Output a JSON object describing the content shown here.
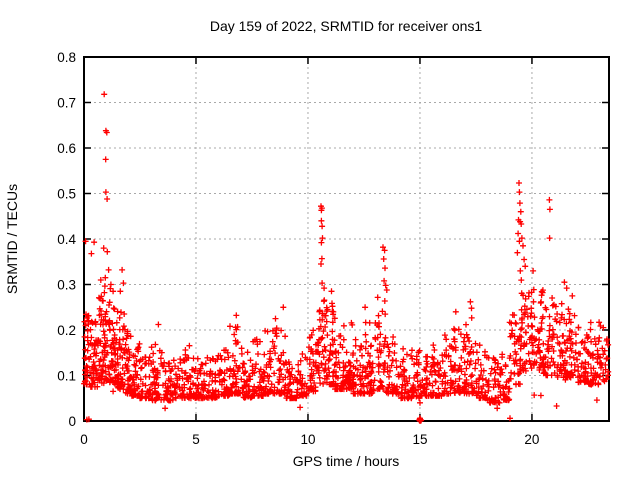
{
  "chart_data": {
    "type": "scatter",
    "title": "Day 159 of 2022, SRMTID for receiver ons1",
    "xlabel": "GPS time / hours",
    "ylabel": "SRMTID / TECUs",
    "xlim": [
      0,
      23.44
    ],
    "ylim": [
      0,
      0.8
    ],
    "xticks": {
      "values": [
        0,
        5,
        10,
        15,
        20
      ],
      "labels": [
        "0",
        "5",
        "10",
        "15",
        "20"
      ]
    },
    "yticks": {
      "values": [
        0,
        0.1,
        0.2,
        0.3,
        0.4,
        0.5,
        0.6,
        0.7,
        0.8
      ],
      "labels": [
        "0",
        "0.1",
        "0.2",
        "0.3",
        "0.4",
        "0.5",
        "0.6",
        "0.7",
        "0.8"
      ]
    },
    "grid": true,
    "legend": "none",
    "marker": {
      "shape": "plus",
      "size": 7
    },
    "series": [
      {
        "name": "SRMTID"
      }
    ],
    "outliers": [
      [
        0.9,
        0.718
      ],
      [
        0.98,
        0.638
      ],
      [
        1.02,
        0.634
      ],
      [
        0.97,
        0.575
      ],
      [
        0.98,
        0.503
      ],
      [
        1.03,
        0.488
      ],
      [
        0.07,
        0.395
      ],
      [
        0.45,
        0.393
      ],
      [
        0.88,
        0.38
      ],
      [
        1.04,
        0.372
      ],
      [
        0.33,
        0.368
      ],
      [
        0.75,
        0.31
      ],
      [
        0.95,
        0.315
      ],
      [
        1.1,
        0.332
      ],
      [
        1.2,
        0.3
      ],
      [
        1.3,
        0.285
      ],
      [
        1.7,
        0.332
      ],
      [
        1.76,
        0.303
      ],
      [
        1.62,
        0.285
      ],
      [
        3.32,
        0.212
      ],
      [
        6.8,
        0.232
      ],
      [
        8.55,
        0.225
      ],
      [
        8.9,
        0.25
      ],
      [
        10.58,
        0.472
      ],
      [
        10.62,
        0.468
      ],
      [
        10.6,
        0.463
      ],
      [
        10.6,
        0.44
      ],
      [
        10.63,
        0.428
      ],
      [
        10.65,
        0.402
      ],
      [
        10.6,
        0.392
      ],
      [
        10.62,
        0.357
      ],
      [
        10.58,
        0.345
      ],
      [
        10.63,
        0.303
      ],
      [
        10.72,
        0.292
      ],
      [
        11.05,
        0.285
      ],
      [
        12.55,
        0.25
      ],
      [
        13.35,
        0.382
      ],
      [
        13.42,
        0.375
      ],
      [
        13.38,
        0.356
      ],
      [
        13.44,
        0.336
      ],
      [
        13.4,
        0.308
      ],
      [
        13.47,
        0.298
      ],
      [
        13.52,
        0.288
      ],
      [
        16.6,
        0.24
      ],
      [
        17.25,
        0.262
      ],
      [
        17.3,
        0.248
      ],
      [
        19.42,
        0.523
      ],
      [
        19.44,
        0.503
      ],
      [
        19.46,
        0.479
      ],
      [
        19.5,
        0.46
      ],
      [
        19.4,
        0.442
      ],
      [
        19.47,
        0.438
      ],
      [
        19.52,
        0.433
      ],
      [
        19.38,
        0.412
      ],
      [
        19.55,
        0.402
      ],
      [
        19.44,
        0.395
      ],
      [
        19.6,
        0.385
      ],
      [
        19.35,
        0.37
      ],
      [
        19.65,
        0.355
      ],
      [
        19.7,
        0.34
      ],
      [
        19.48,
        0.33
      ],
      [
        20.05,
        0.33
      ],
      [
        20.78,
        0.486
      ],
      [
        20.8,
        0.465
      ],
      [
        20.79,
        0.402
      ],
      [
        21.45,
        0.305
      ],
      [
        21.55,
        0.292
      ],
      [
        21.8,
        0.275
      ]
    ],
    "low_points": [
      [
        0.13,
        0.003
      ],
      [
        0.22,
        0.004
      ],
      [
        1.3,
        0.065
      ],
      [
        3.62,
        0.028
      ],
      [
        9.65,
        0.03
      ],
      [
        14.97,
        0.002
      ],
      [
        15.0,
        0.0
      ],
      [
        15.03,
        0.003
      ],
      [
        15.0,
        0.006
      ],
      [
        15.05,
        0.001
      ],
      [
        14.99,
        0.004
      ],
      [
        15.0,
        0.04
      ],
      [
        18.45,
        0.028
      ],
      [
        18.55,
        0.04
      ],
      [
        19.02,
        0.006
      ],
      [
        20.1,
        0.057
      ],
      [
        20.4,
        0.056
      ],
      [
        21.1,
        0.033
      ],
      [
        22.9,
        0.046
      ]
    ],
    "baseline_bins": [
      [
        0.0,
        0.3,
        40,
        0.08,
        0.24,
        1.6
      ],
      [
        0.3,
        0.6,
        40,
        0.075,
        0.22
      ],
      [
        0.6,
        0.9,
        42,
        0.08,
        0.28
      ],
      [
        0.9,
        1.2,
        45,
        0.085,
        0.3,
        1.4
      ],
      [
        1.2,
        1.5,
        42,
        0.08,
        0.27
      ],
      [
        1.5,
        1.8,
        40,
        0.07,
        0.25
      ],
      [
        1.8,
        2.1,
        38,
        0.06,
        0.21
      ],
      [
        2.1,
        2.5,
        40,
        0.055,
        0.17
      ],
      [
        2.5,
        3.0,
        45,
        0.05,
        0.15
      ],
      [
        3.0,
        3.5,
        45,
        0.045,
        0.17
      ],
      [
        3.5,
        4.0,
        42,
        0.045,
        0.13
      ],
      [
        4.0,
        4.5,
        42,
        0.05,
        0.15
      ],
      [
        4.5,
        5.0,
        42,
        0.05,
        0.17
      ],
      [
        5.0,
        5.5,
        42,
        0.05,
        0.14
      ],
      [
        5.5,
        6.0,
        42,
        0.05,
        0.15
      ],
      [
        6.0,
        6.5,
        42,
        0.055,
        0.16
      ],
      [
        6.5,
        7.0,
        44,
        0.06,
        0.21
      ],
      [
        7.0,
        7.5,
        42,
        0.05,
        0.16
      ],
      [
        7.5,
        8.0,
        42,
        0.055,
        0.18
      ],
      [
        8.0,
        8.5,
        44,
        0.06,
        0.2
      ],
      [
        8.5,
        9.0,
        44,
        0.06,
        0.23
      ],
      [
        9.0,
        9.5,
        38,
        0.05,
        0.13
      ],
      [
        9.5,
        10.0,
        38,
        0.055,
        0.15
      ],
      [
        10.0,
        10.4,
        38,
        0.065,
        0.2
      ],
      [
        10.4,
        10.8,
        42,
        0.08,
        0.28,
        1.6
      ],
      [
        10.8,
        11.2,
        42,
        0.08,
        0.26
      ],
      [
        11.2,
        11.6,
        40,
        0.07,
        0.2
      ],
      [
        11.6,
        12.0,
        40,
        0.07,
        0.23
      ],
      [
        12.0,
        12.5,
        44,
        0.06,
        0.18
      ],
      [
        12.5,
        13.0,
        44,
        0.06,
        0.22
      ],
      [
        13.0,
        13.5,
        44,
        0.07,
        0.28,
        1.7
      ],
      [
        13.5,
        14.0,
        40,
        0.06,
        0.2
      ],
      [
        14.0,
        14.5,
        40,
        0.05,
        0.16
      ],
      [
        14.5,
        15.0,
        40,
        0.05,
        0.165
      ],
      [
        15.0,
        15.5,
        40,
        0.055,
        0.155
      ],
      [
        15.5,
        16.0,
        40,
        0.055,
        0.17
      ],
      [
        16.0,
        16.5,
        40,
        0.06,
        0.19
      ],
      [
        16.5,
        17.0,
        42,
        0.06,
        0.21
      ],
      [
        17.0,
        17.5,
        42,
        0.06,
        0.24
      ],
      [
        17.5,
        18.0,
        40,
        0.05,
        0.18
      ],
      [
        18.0,
        18.5,
        36,
        0.04,
        0.14
      ],
      [
        18.5,
        19.0,
        36,
        0.045,
        0.16
      ],
      [
        19.0,
        19.5,
        42,
        0.08,
        0.26,
        1.5
      ],
      [
        19.5,
        20.0,
        46,
        0.11,
        0.32,
        1.2
      ],
      [
        20.0,
        20.5,
        45,
        0.11,
        0.3,
        1.3
      ],
      [
        20.5,
        21.0,
        42,
        0.1,
        0.28,
        1.4
      ],
      [
        21.0,
        21.5,
        42,
        0.09,
        0.26,
        1.5
      ],
      [
        21.5,
        22.0,
        42,
        0.095,
        0.25,
        1.5
      ],
      [
        22.0,
        22.5,
        42,
        0.085,
        0.21
      ],
      [
        22.5,
        23.0,
        42,
        0.08,
        0.22,
        1.7
      ],
      [
        23.0,
        23.44,
        28,
        0.08,
        0.21,
        1.3
      ]
    ]
  },
  "colors": {
    "marker": "#ff0000",
    "grid": "#a9a9a9",
    "border": "#000000",
    "background": "#ffffff",
    "text": "#000000"
  }
}
